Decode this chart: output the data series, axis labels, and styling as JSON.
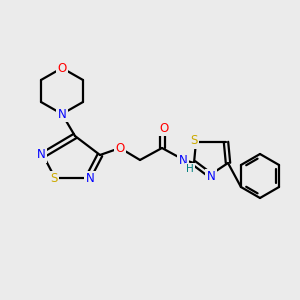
{
  "background_color": "#ebebeb",
  "bond_color": "#000000",
  "atom_colors": {
    "N": "#0000ff",
    "O": "#ff0000",
    "S": "#ccaa00",
    "H": "#008080",
    "C": "#000000"
  },
  "figsize": [
    3.0,
    3.0
  ],
  "dpi": 100
}
